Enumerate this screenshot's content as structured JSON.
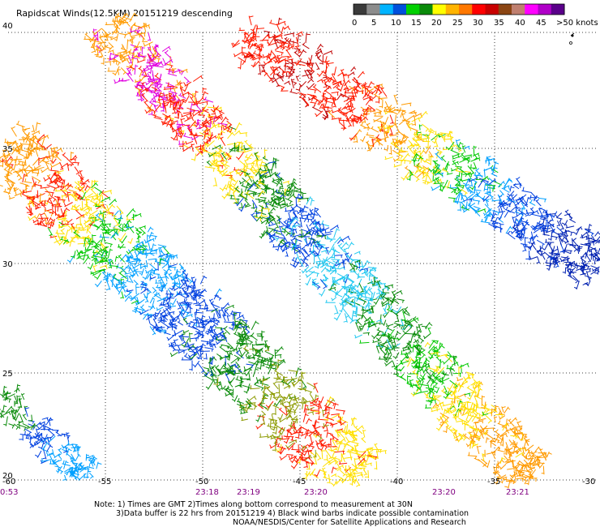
{
  "title": "Rapidscat Winds(12.5KM) 20151219 descending",
  "legend": {
    "colors": [
      "#3a3a3a",
      "#8c8c8c",
      "#00b4ff",
      "#0050dc",
      "#00d000",
      "#0a8a0a",
      "#ffff00",
      "#ffb400",
      "#ff7800",
      "#ff0000",
      "#c80000",
      "#8b4513",
      "#c08070",
      "#ff00ff",
      "#b000c8",
      "#5a008a"
    ],
    "labels": [
      "0",
      "5",
      "10",
      "15",
      "20",
      "25",
      "30",
      "35",
      "40",
      "45",
      ">50 knots"
    ]
  },
  "map": {
    "lat_labels": [
      "40",
      "35",
      "30",
      "25",
      "20"
    ],
    "lon_labels": [
      "-60",
      "-55",
      "-50",
      "-45",
      "-40",
      "-35",
      "-30"
    ],
    "time_labels": [
      "0:53",
      "23:18",
      "23:19",
      "23:20",
      "23:20",
      "23:21"
    ]
  },
  "notes": {
    "line1": "Note: 1) Times are GMT 2)Times along bottom correspond to measurement at 30N",
    "line2": "3)Data buffer is 22 hrs from 20151219 4) Black wind barbs indicate possible contamination",
    "line3": "NOAA/NESDIS/Center for Satellite Applications and Research"
  }
}
